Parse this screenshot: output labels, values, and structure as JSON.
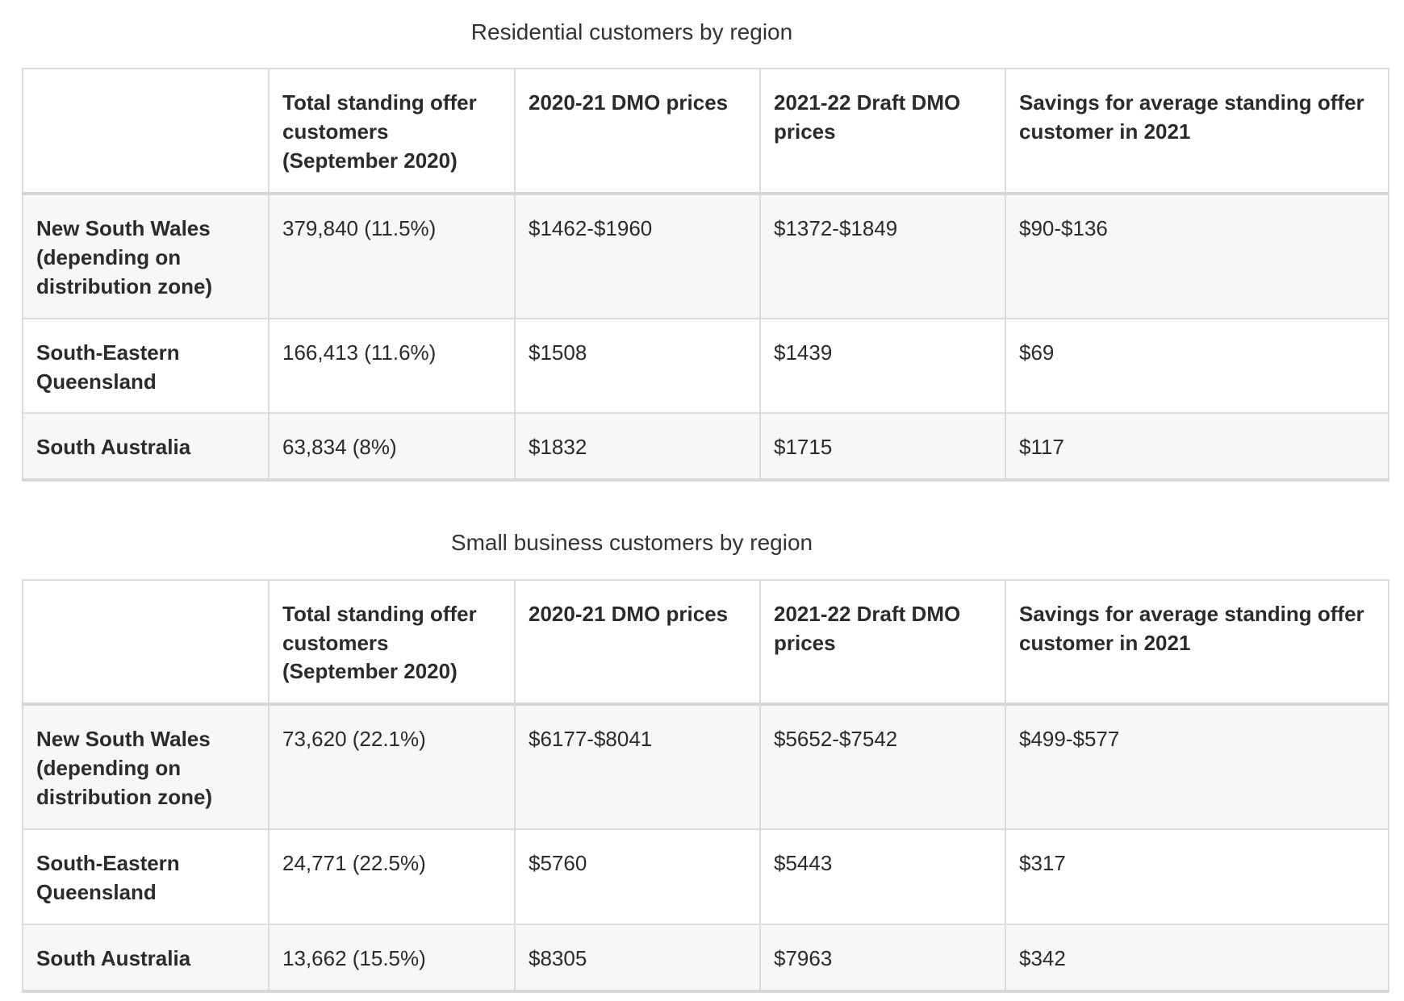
{
  "colors": {
    "background": "#ffffff",
    "border": "#dcdcdc",
    "border_heavy": "#d6d6d6",
    "row_stripe": "#f7f7f7",
    "text": "#2b2b2b",
    "caption_text": "#333333"
  },
  "tables": [
    {
      "caption": "Residential customers by region",
      "headers": [
        "",
        "Total standing offer customers (September 2020)",
        "2020-21 DMO prices",
        "2021-22 Draft DMO prices",
        "Savings for average standing offer customer in 2021"
      ],
      "rows": [
        [
          "New South Wales (depending on distribution zone)",
          "379,840 (11.5%)",
          "$1462-$1960",
          "$1372-$1849",
          "$90-$136"
        ],
        [
          "South-Eastern Queensland",
          "166,413 (11.6%)",
          "$1508",
          "$1439",
          "$69"
        ],
        [
          "South Australia",
          "63,834 (8%)",
          "$1832",
          "$1715",
          "$117"
        ]
      ]
    },
    {
      "caption": "Small business customers by region",
      "headers": [
        "",
        "Total standing offer customers (September 2020)",
        "2020-21 DMO prices",
        "2021-22 Draft DMO prices",
        "Savings for average standing offer customer in 2021"
      ],
      "rows": [
        [
          "New South Wales (depending on distribution zone)",
          "73,620 (22.1%)",
          "$6177-$8041",
          "$5652-$7542",
          "$499-$577"
        ],
        [
          "South-Eastern Queensland",
          "24,771 (22.5%)",
          "$5760",
          "$5443",
          "$317"
        ],
        [
          "South Australia",
          "13,662 (15.5%)",
          "$8305",
          "$7963",
          "$342"
        ]
      ]
    }
  ]
}
